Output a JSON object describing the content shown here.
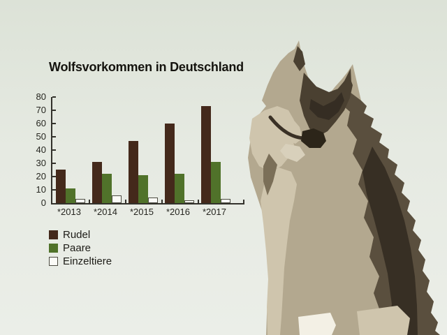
{
  "page": {
    "background_top": "#dce2d7",
    "background_bottom": "#ebeee8"
  },
  "chart_data": {
    "type": "bar",
    "title": "Wolfsvorkommen in Deutschland",
    "categories": [
      "*2013",
      "*2014",
      "*2015",
      "*2016",
      "*2017"
    ],
    "series": [
      {
        "name": "Rudel",
        "color": "#44291b",
        "values": [
          25,
          31,
          47,
          60,
          73
        ]
      },
      {
        "name": "Paare",
        "color": "#50722a",
        "values": [
          11,
          22,
          21,
          22,
          31
        ]
      },
      {
        "name": "Einzeltiere",
        "color": "#fbfbf7",
        "border": "#4c4b41",
        "values": [
          3,
          6,
          4,
          2,
          3
        ]
      }
    ],
    "ylim": [
      0,
      80
    ],
    "yticks": [
      0,
      10,
      20,
      30,
      40,
      50,
      60,
      70,
      80
    ],
    "xlabel": "",
    "ylabel": "",
    "grid": false,
    "legend_position": "bottom-left",
    "axis_color": "#32312b"
  },
  "illustration": {
    "name": "wolf",
    "style": "posterized sitting wolf"
  }
}
